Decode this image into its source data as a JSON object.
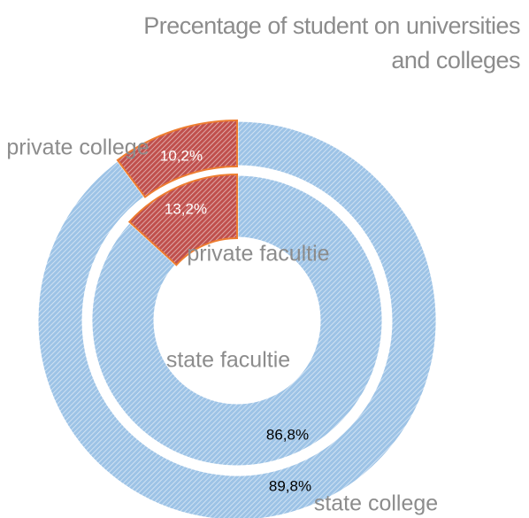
{
  "chart_data": {
    "type": "donut",
    "title": "Precentage of student on universities and colleges",
    "rings": [
      {
        "categories": [
          "state college",
          "private college"
        ],
        "values": [
          89.8,
          10.2
        ],
        "value_labels": [
          "89,8%",
          "10,2%"
        ],
        "colors": [
          "#9dc3e6",
          "#c0504d"
        ]
      },
      {
        "categories": [
          "state facultie",
          "private facultie"
        ],
        "values": [
          86.8,
          13.2
        ],
        "value_labels": [
          "86,8%",
          "13,2%"
        ],
        "colors": [
          "#9dc3e6",
          "#c0504d"
        ]
      }
    ]
  }
}
